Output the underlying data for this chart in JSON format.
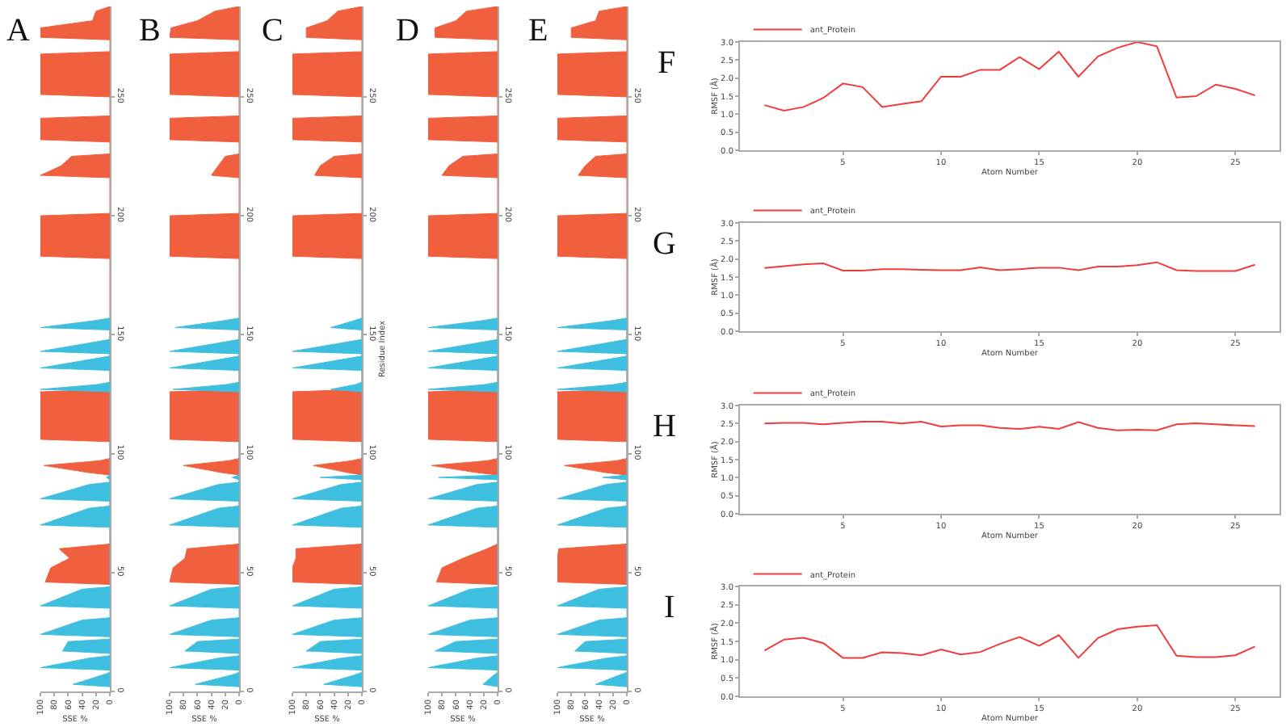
{
  "chart_data": [
    {
      "type": "area",
      "title": "A",
      "orientation": "horizontal",
      "xlabel": "SSE %",
      "xlim": [
        100,
        0
      ],
      "xticks": [
        100,
        80,
        60,
        40,
        20,
        0
      ],
      "ylim": [
        0,
        288
      ],
      "yticks": [
        0,
        50,
        100,
        150,
        200,
        250
      ],
      "series": [
        {
          "color": "#f0603f",
          "x": [
            45,
            46,
            52,
            56,
            60,
            62,
            91,
            92,
            95,
            97,
            98,
            105,
            106,
            126,
            127,
            182,
            183,
            200,
            201,
            216,
            217,
            221,
            225,
            226,
            231,
            232,
            241,
            242,
            250,
            251,
            268,
            269,
            274,
            275,
            279,
            282,
            286,
            288
          ],
          "values": [
            0,
            93,
            85,
            58,
            73,
            0,
            0,
            30,
            95,
            15,
            0,
            0,
            100,
            100,
            0,
            0,
            100,
            100,
            0,
            0,
            100,
            70,
            55,
            0,
            0,
            100,
            100,
            0,
            0,
            100,
            100,
            0,
            0,
            100,
            100,
            25,
            20,
            0
          ]
        },
        {
          "color": "#3fbfe0",
          "x": [
            2,
            3,
            7,
            8,
            9,
            10,
            14,
            15,
            16,
            17,
            21,
            22,
            23,
            24,
            30,
            31,
            35,
            36,
            43,
            44,
            69,
            70,
            77,
            78,
            80,
            81,
            87,
            88,
            89,
            90,
            91,
            126,
            127,
            129,
            130,
            135,
            136,
            140,
            141,
            142,
            143,
            147,
            148,
            152,
            153,
            156,
            157
          ],
          "values": [
            0,
            53,
            10,
            0,
            0,
            100,
            30,
            0,
            0,
            68,
            60,
            0,
            0,
            100,
            40,
            0,
            0,
            100,
            40,
            0,
            0,
            100,
            30,
            0,
            0,
            100,
            30,
            0,
            0,
            5,
            0,
            0,
            100,
            20,
            0,
            0,
            100,
            20,
            0,
            0,
            100,
            20,
            0,
            0,
            100,
            20,
            0
          ]
        }
      ]
    },
    {
      "type": "area",
      "title": "B",
      "orientation": "horizontal",
      "xlabel": "SSE %",
      "xlim": [
        100,
        0
      ],
      "xticks": [
        100,
        80,
        60,
        40,
        20,
        0
      ],
      "ylim": [
        0,
        288
      ],
      "yticks": [
        0,
        50,
        100,
        150,
        200,
        250
      ],
      "series": [
        {
          "color": "#f0603f",
          "x": [
            45,
            46,
            52,
            56,
            60,
            62,
            91,
            92,
            95,
            97,
            98,
            105,
            106,
            126,
            127,
            182,
            183,
            200,
            201,
            216,
            217,
            221,
            225,
            226,
            231,
            232,
            241,
            242,
            250,
            251,
            268,
            269,
            274,
            275,
            279,
            282,
            286,
            288
          ],
          "values": [
            0,
            100,
            95,
            78,
            75,
            0,
            0,
            25,
            80,
            15,
            0,
            0,
            100,
            100,
            0,
            0,
            100,
            100,
            0,
            0,
            40,
            30,
            20,
            0,
            0,
            100,
            100,
            0,
            0,
            100,
            100,
            0,
            0,
            100,
            98,
            60,
            35,
            0
          ]
        },
        {
          "color": "#3fbfe0",
          "x": [
            2,
            3,
            7,
            8,
            9,
            10,
            14,
            15,
            16,
            17,
            21,
            22,
            23,
            24,
            30,
            31,
            35,
            36,
            43,
            44,
            69,
            70,
            77,
            78,
            80,
            81,
            87,
            88,
            89,
            90,
            91,
            126,
            127,
            129,
            130,
            135,
            136,
            140,
            141,
            142,
            143,
            147,
            148,
            152,
            153,
            156,
            157
          ],
          "values": [
            0,
            63,
            10,
            0,
            0,
            100,
            30,
            0,
            0,
            78,
            60,
            0,
            0,
            100,
            40,
            0,
            0,
            100,
            40,
            0,
            0,
            100,
            30,
            0,
            0,
            100,
            30,
            0,
            0,
            10,
            0,
            0,
            95,
            20,
            0,
            0,
            100,
            20,
            0,
            0,
            100,
            20,
            0,
            0,
            92,
            20,
            0
          ]
        }
      ]
    },
    {
      "type": "area",
      "title": "C",
      "orientation": "horizontal",
      "xlabel": "SSE %",
      "ylabel": "Residue Index",
      "xlim": [
        100,
        0
      ],
      "xticks": [
        100,
        80,
        60,
        40,
        20,
        0
      ],
      "ylim": [
        0,
        288
      ],
      "yticks": [
        0,
        50,
        100,
        150,
        200,
        250
      ],
      "series": [
        {
          "color": "#f0603f",
          "x": [
            45,
            46,
            52,
            56,
            60,
            62,
            91,
            92,
            95,
            97,
            98,
            105,
            106,
            126,
            127,
            182,
            183,
            200,
            201,
            216,
            217,
            221,
            225,
            226,
            231,
            232,
            241,
            242,
            250,
            251,
            268,
            269,
            274,
            275,
            279,
            282,
            286,
            288
          ],
          "values": [
            0,
            100,
            100,
            95,
            95,
            0,
            0,
            20,
            70,
            15,
            0,
            0,
            100,
            100,
            0,
            0,
            100,
            100,
            0,
            0,
            68,
            60,
            40,
            0,
            0,
            100,
            100,
            0,
            0,
            100,
            100,
            0,
            0,
            80,
            80,
            50,
            35,
            0
          ]
        },
        {
          "color": "#3fbfe0",
          "x": [
            2,
            3,
            7,
            8,
            9,
            10,
            14,
            15,
            16,
            17,
            21,
            22,
            23,
            24,
            30,
            31,
            35,
            36,
            43,
            44,
            69,
            70,
            77,
            78,
            80,
            81,
            87,
            88,
            89,
            90,
            91,
            126,
            127,
            129,
            130,
            135,
            136,
            140,
            141,
            142,
            143,
            147,
            148,
            152,
            153,
            156,
            157
          ],
          "values": [
            0,
            55,
            10,
            0,
            0,
            100,
            30,
            0,
            0,
            80,
            60,
            0,
            0,
            100,
            40,
            0,
            0,
            100,
            40,
            0,
            0,
            100,
            30,
            0,
            0,
            100,
            30,
            0,
            0,
            60,
            0,
            0,
            45,
            10,
            0,
            0,
            100,
            20,
            0,
            0,
            100,
            20,
            0,
            0,
            45,
            10,
            0
          ]
        }
      ]
    },
    {
      "type": "area",
      "title": "D",
      "orientation": "horizontal",
      "xlabel": "SSE %",
      "xlim": [
        100,
        0
      ],
      "xticks": [
        100,
        80,
        60,
        40,
        20,
        0
      ],
      "ylim": [
        0,
        288
      ],
      "yticks": [
        0,
        50,
        100,
        150,
        200,
        250
      ],
      "series": [
        {
          "color": "#f0603f",
          "x": [
            45,
            46,
            52,
            56,
            60,
            62,
            91,
            92,
            95,
            97,
            98,
            105,
            106,
            126,
            127,
            182,
            183,
            200,
            201,
            216,
            217,
            221,
            225,
            226,
            231,
            232,
            241,
            242,
            250,
            251,
            268,
            269,
            274,
            275,
            279,
            282,
            286,
            288
          ],
          "values": [
            0,
            88,
            80,
            50,
            15,
            0,
            0,
            30,
            95,
            15,
            0,
            0,
            100,
            100,
            0,
            0,
            100,
            100,
            0,
            0,
            80,
            70,
            50,
            0,
            0,
            100,
            100,
            0,
            0,
            100,
            100,
            0,
            0,
            90,
            90,
            60,
            45,
            0
          ]
        },
        {
          "color": "#3fbfe0",
          "x": [
            2,
            3,
            7,
            8,
            9,
            10,
            14,
            15,
            16,
            17,
            21,
            22,
            23,
            24,
            30,
            31,
            35,
            36,
            43,
            44,
            69,
            70,
            77,
            78,
            80,
            81,
            87,
            88,
            89,
            90,
            91,
            126,
            127,
            129,
            130,
            135,
            136,
            140,
            141,
            142,
            143,
            147,
            148,
            152,
            153,
            156,
            157
          ],
          "values": [
            0,
            21,
            5,
            0,
            0,
            100,
            30,
            0,
            0,
            90,
            60,
            0,
            0,
            100,
            40,
            0,
            0,
            100,
            40,
            0,
            0,
            100,
            30,
            0,
            0,
            100,
            30,
            0,
            0,
            85,
            0,
            0,
            100,
            20,
            0,
            0,
            100,
            20,
            0,
            0,
            100,
            20,
            0,
            0,
            100,
            20,
            0
          ]
        }
      ]
    },
    {
      "type": "area",
      "title": "E",
      "orientation": "horizontal",
      "xlabel": "SSE %",
      "xlim": [
        100,
        0
      ],
      "xticks": [
        100,
        80,
        60,
        40,
        20,
        0
      ],
      "ylim": [
        0,
        288
      ],
      "yticks": [
        0,
        50,
        100,
        150,
        200,
        250
      ],
      "series": [
        {
          "color": "#f0603f",
          "x": [
            45,
            46,
            52,
            56,
            60,
            62,
            91,
            92,
            95,
            97,
            98,
            105,
            106,
            126,
            127,
            182,
            183,
            200,
            201,
            216,
            217,
            221,
            225,
            226,
            231,
            232,
            241,
            242,
            250,
            251,
            268,
            269,
            274,
            275,
            279,
            282,
            286,
            288
          ],
          "values": [
            0,
            100,
            100,
            100,
            98,
            0,
            0,
            30,
            90,
            15,
            0,
            0,
            100,
            100,
            0,
            0,
            100,
            100,
            0,
            0,
            70,
            60,
            45,
            0,
            0,
            100,
            100,
            0,
            0,
            100,
            100,
            0,
            0,
            80,
            80,
            45,
            40,
            0
          ]
        },
        {
          "color": "#3fbfe0",
          "x": [
            2,
            3,
            7,
            8,
            9,
            10,
            14,
            15,
            16,
            17,
            21,
            22,
            23,
            24,
            30,
            31,
            35,
            36,
            43,
            44,
            69,
            70,
            77,
            78,
            80,
            81,
            87,
            88,
            89,
            90,
            91,
            126,
            127,
            129,
            130,
            135,
            136,
            140,
            141,
            142,
            143,
            147,
            148,
            152,
            153,
            156,
            157
          ],
          "values": [
            0,
            45,
            10,
            0,
            0,
            100,
            30,
            0,
            0,
            75,
            60,
            0,
            0,
            100,
            40,
            0,
            0,
            100,
            40,
            0,
            0,
            100,
            30,
            0,
            0,
            100,
            30,
            0,
            0,
            35,
            0,
            0,
            100,
            20,
            0,
            0,
            100,
            20,
            0,
            0,
            100,
            20,
            0,
            0,
            100,
            20,
            0
          ]
        }
      ]
    },
    {
      "type": "line",
      "title": "F",
      "xlabel": "Atom Number",
      "ylabel": "RMSF (Å)",
      "legend": "top left",
      "x": [
        1,
        2,
        3,
        4,
        5,
        6,
        7,
        8,
        9,
        10,
        11,
        12,
        13,
        14,
        15,
        16,
        17,
        18,
        19,
        20,
        21,
        22,
        23,
        24,
        25,
        26
      ],
      "xlim": [
        -0.25,
        27.25
      ],
      "xticks": [
        5,
        10,
        15,
        20,
        25
      ],
      "ylim": [
        0,
        3
      ],
      "yticks": [
        {
          "value": 0,
          "label": "0.0"
        },
        0.5,
        {
          "value": 1,
          "label": "1.0"
        },
        1.5,
        {
          "value": 2,
          "label": "2.0"
        },
        2.5,
        {
          "value": 3,
          "label": "3.0"
        }
      ],
      "series": [
        {
          "name": "ant_Protein",
          "color": "#f03c3c",
          "values": [
            1.25,
            1.1,
            1.2,
            1.45,
            1.85,
            1.75,
            1.2,
            1.28,
            1.36,
            2.04,
            2.04,
            2.23,
            2.23,
            2.58,
            2.25,
            2.73,
            2.04,
            2.6,
            2.84,
            3.0,
            2.88,
            1.46,
            1.5,
            1.82,
            1.7,
            1.52
          ]
        }
      ]
    },
    {
      "type": "line",
      "title": "G",
      "xlabel": "Atom Number",
      "ylabel": "RMSF (Å)",
      "legend": "top left",
      "x": [
        1,
        2,
        3,
        4,
        5,
        6,
        7,
        8,
        9,
        10,
        11,
        12,
        13,
        14,
        15,
        16,
        17,
        18,
        19,
        20,
        21,
        22,
        23,
        24,
        25,
        26
      ],
      "xlim": [
        -0.25,
        27.25
      ],
      "xticks": [
        5,
        10,
        15,
        20,
        25
      ],
      "ylim": [
        0,
        3
      ],
      "yticks": [
        {
          "value": 0,
          "label": "0.0"
        },
        0.5,
        {
          "value": 1,
          "label": "1.0"
        },
        1.5,
        {
          "value": 2,
          "label": "2.0"
        },
        2.5,
        {
          "value": 3,
          "label": "3.0"
        }
      ],
      "series": [
        {
          "name": "ant_Protein",
          "color": "#f03c3c",
          "values": [
            1.75,
            1.8,
            1.85,
            1.88,
            1.68,
            1.68,
            1.72,
            1.72,
            1.7,
            1.69,
            1.69,
            1.77,
            1.69,
            1.72,
            1.76,
            1.76,
            1.69,
            1.79,
            1.79,
            1.83,
            1.91,
            1.69,
            1.67,
            1.67,
            1.67,
            1.84
          ]
        }
      ]
    },
    {
      "type": "line",
      "title": "H",
      "xlabel": "Atom Number",
      "ylabel": "RMSF (Å)",
      "legend": "top left",
      "x": [
        1,
        2,
        3,
        4,
        5,
        6,
        7,
        8,
        9,
        10,
        11,
        12,
        13,
        14,
        15,
        16,
        17,
        18,
        19,
        20,
        21,
        22,
        23,
        24,
        25,
        26
      ],
      "xlim": [
        -0.25,
        27.25
      ],
      "xticks": [
        5,
        10,
        15,
        20,
        25
      ],
      "ylim": [
        0,
        3
      ],
      "yticks": [
        {
          "value": 0,
          "label": "0.0"
        },
        0.5,
        {
          "value": 1,
          "label": "1.0"
        },
        1.5,
        {
          "value": 2,
          "label": "2.0"
        },
        2.5,
        {
          "value": 3,
          "label": "3.0"
        }
      ],
      "series": [
        {
          "name": "ant_Protein",
          "color": "#f03c3c",
          "values": [
            2.5,
            2.52,
            2.52,
            2.48,
            2.52,
            2.55,
            2.55,
            2.5,
            2.55,
            2.42,
            2.45,
            2.45,
            2.38,
            2.35,
            2.41,
            2.35,
            2.54,
            2.38,
            2.31,
            2.33,
            2.31,
            2.48,
            2.51,
            2.48,
            2.45,
            2.43
          ]
        }
      ]
    },
    {
      "type": "line",
      "title": "I",
      "xlabel": "Atom Number",
      "ylabel": "RMSF (Å)",
      "legend": "top left",
      "x": [
        1,
        2,
        3,
        4,
        5,
        6,
        7,
        8,
        9,
        10,
        11,
        12,
        13,
        14,
        15,
        16,
        17,
        18,
        19,
        20,
        21,
        22,
        23,
        24,
        25,
        26
      ],
      "xlim": [
        -0.25,
        27.25
      ],
      "xticks": [
        5,
        10,
        15,
        20,
        25
      ],
      "ylim": [
        0,
        3
      ],
      "yticks": [
        {
          "value": 0,
          "label": "0.0"
        },
        0.5,
        {
          "value": 1,
          "label": "1.0"
        },
        1.5,
        {
          "value": 2,
          "label": "2.0"
        },
        2.5,
        {
          "value": 3,
          "label": "3.0"
        }
      ],
      "series": [
        {
          "name": "ant_Protein",
          "color": "#f03c3c",
          "values": [
            1.25,
            1.55,
            1.6,
            1.45,
            1.05,
            1.05,
            1.2,
            1.18,
            1.12,
            1.28,
            1.14,
            1.21,
            1.43,
            1.62,
            1.38,
            1.67,
            1.05,
            1.59,
            1.83,
            1.9,
            1.94,
            1.11,
            1.07,
            1.07,
            1.12,
            1.36
          ]
        }
      ]
    }
  ]
}
